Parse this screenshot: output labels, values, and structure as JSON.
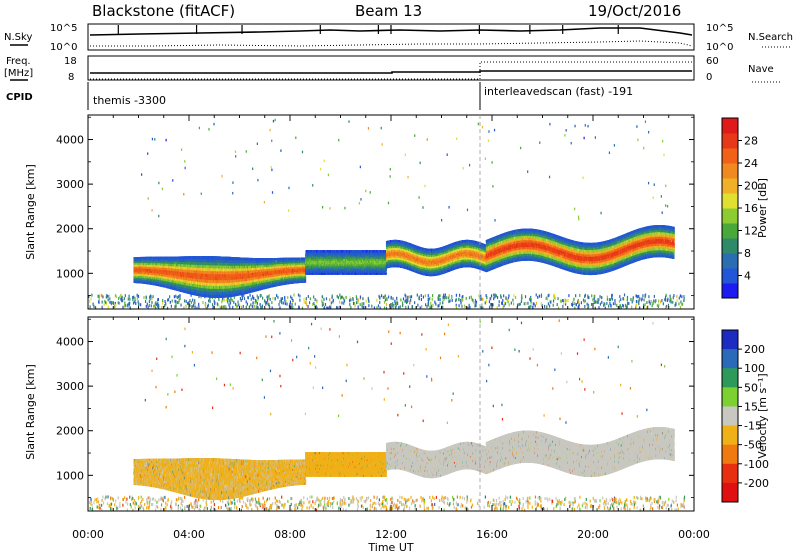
{
  "header": {
    "station": "Blackstone (fitACF)",
    "beam": "Beam 13",
    "date": "19/Oct/2016"
  },
  "noise_panel": {
    "left_label": "N.Sky",
    "right_label": "N.Search",
    "left_ticks": [
      "10^5",
      "10^0"
    ],
    "right_ticks": [
      "10^5",
      "10^0"
    ]
  },
  "freq_panel": {
    "left_label_1": "Freq.",
    "left_label_2": "[MHz]",
    "right_label": "Nave",
    "left_ticks": [
      "18",
      "8"
    ],
    "right_ticks": [
      "60",
      "0"
    ]
  },
  "cpid_panel": {
    "label": "CPID",
    "modes": [
      {
        "name": "themis -3300",
        "start_hour": 0,
        "end_hour": 15.75
      },
      {
        "name": "interleavedscan (fast) -191",
        "start_hour": 15.75,
        "end_hour": 24
      }
    ]
  },
  "x_axis": {
    "title": "Time UT",
    "ticks": [
      "00:00",
      "04:00",
      "08:00",
      "12:00",
      "16:00",
      "20:00",
      "00:00"
    ],
    "tick_hours": [
      0,
      4,
      8,
      12,
      16,
      20,
      24
    ],
    "range": [
      0,
      24
    ]
  },
  "power_panel": {
    "ylabel": "Slant Range [km]",
    "yticks": [
      "1000",
      "2000",
      "3000",
      "4000"
    ],
    "ytick_values": [
      1000,
      2000,
      3000,
      4000
    ],
    "ylim": [
      200,
      4550
    ],
    "colorbar": {
      "label": "Power [dB]",
      "ticks": [
        "4",
        "8",
        "12",
        "16",
        "20",
        "24",
        "28"
      ],
      "tick_values": [
        4,
        8,
        12,
        16,
        20,
        24,
        28
      ],
      "range": [
        0,
        32
      ],
      "colors": [
        "#1c1cf0",
        "#2255d8",
        "#2a6db0",
        "#2f8a6a",
        "#4aa83a",
        "#8ccc32",
        "#e0e030",
        "#f0b028",
        "#f08a20",
        "#f06218",
        "#e8381a",
        "#e01a1a"
      ]
    }
  },
  "velocity_panel": {
    "ylabel": "Slant Range [km]",
    "yticks": [
      "1000",
      "2000",
      "3000",
      "4000"
    ],
    "ytick_values": [
      1000,
      2000,
      3000,
      4000
    ],
    "ylim": [
      200,
      4550
    ],
    "colorbar": {
      "label": "Velocity [m s⁻¹]",
      "ticks": [
        "200",
        "100",
        "50",
        "15",
        "-15",
        "-50",
        "-100",
        "-200"
      ],
      "colors": [
        "#1c2cc0",
        "#2a6ab8",
        "#2e9a5a",
        "#7cd030",
        "#c8c8c0",
        "#f0b018",
        "#f07a10",
        "#e83010",
        "#e01010"
      ]
    }
  },
  "chart_data": {
    "type": "heatmap",
    "title": "Blackstone (fitACF)",
    "xlabel": "Time UT",
    "ylabel": "Slant Range [km]",
    "xlim": [
      0,
      24
    ],
    "ylim": [
      200,
      4550
    ],
    "scatter_bands": [
      {
        "name": "band_A",
        "t_start": 1.8,
        "t_end": 8.6,
        "range_center_km": 1050,
        "range_width_km": 450,
        "peak_power_db": 26,
        "velocity": -30
      },
      {
        "name": "band_B",
        "t_start": 8.6,
        "t_end": 11.8,
        "range_center_km": 1250,
        "range_width_km": 250,
        "peak_power_db": 14,
        "velocity": -30
      },
      {
        "name": "band_C",
        "t_start": 11.8,
        "t_end": 15.75,
        "range_center_km": 1400,
        "range_width_km": 650,
        "peak_power_db": 24,
        "velocity": 0
      },
      {
        "name": "band_D",
        "t_start": 15.75,
        "t_end": 23.2,
        "range_center_km": 1600,
        "range_width_km": 800,
        "peak_power_db": 28,
        "velocity": 0
      }
    ],
    "ground_scatter_range_km": [
      250,
      550
    ],
    "noise_sky_trend": "elevated near 10^5",
    "frequency_mhz": [
      {
        "t_start": 0,
        "t_end": 12,
        "value": 10.5
      },
      {
        "t_start": 12,
        "t_end": 15.75,
        "value": 11.0
      },
      {
        "t_start": 15.75,
        "t_end": 24,
        "value": 11.5
      }
    ],
    "nave": [
      {
        "t_start": 0,
        "t_end": 15.75,
        "value": 0
      },
      {
        "t_start": 15.75,
        "t_end": 24,
        "value": 14
      }
    ]
  }
}
